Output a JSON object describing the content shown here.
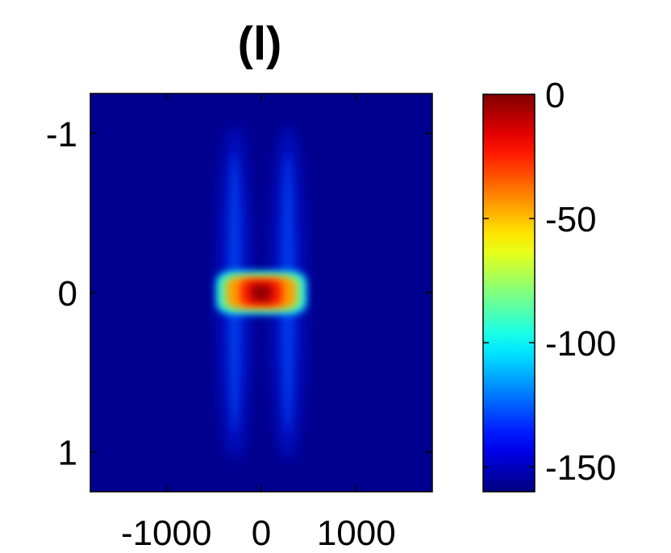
{
  "chart_data": {
    "type": "heatmap",
    "title": "(l)",
    "xlabel": "",
    "ylabel": "",
    "xlim": [
      -1800,
      1800
    ],
    "ylim": [
      -1.25,
      1.25
    ],
    "y_reversed": true,
    "x_ticks": [
      {
        "value": -1000,
        "label": "-1000"
      },
      {
        "value": 0,
        "label": "0"
      },
      {
        "value": 1000,
        "label": "1000"
      }
    ],
    "y_ticks": [
      {
        "value": -1,
        "label": "-1"
      },
      {
        "value": 0,
        "label": "0"
      },
      {
        "value": 1,
        "label": "1"
      }
    ],
    "colormap": "jet",
    "background_color": "#00008F",
    "colorbar": {
      "range": [
        -160,
        0
      ],
      "ticks": [
        {
          "value": 0,
          "label": "0"
        },
        {
          "value": -50,
          "label": "-50"
        },
        {
          "value": -100,
          "label": "-100"
        },
        {
          "value": -150,
          "label": "-150"
        }
      ]
    },
    "features": {
      "peak_value": 0,
      "peak_location": [
        0,
        0
      ],
      "central_region": {
        "x_extent": [
          -450,
          450
        ],
        "y_extent": [
          -0.1,
          0.1
        ],
        "level": -45
      },
      "side_lobes": [
        {
          "x": -280,
          "y_extent": [
            -1.05,
            1.05
          ],
          "level": -135
        },
        {
          "x": 280,
          "y_extent": [
            -1.05,
            1.05
          ],
          "level": -135
        }
      ]
    }
  }
}
